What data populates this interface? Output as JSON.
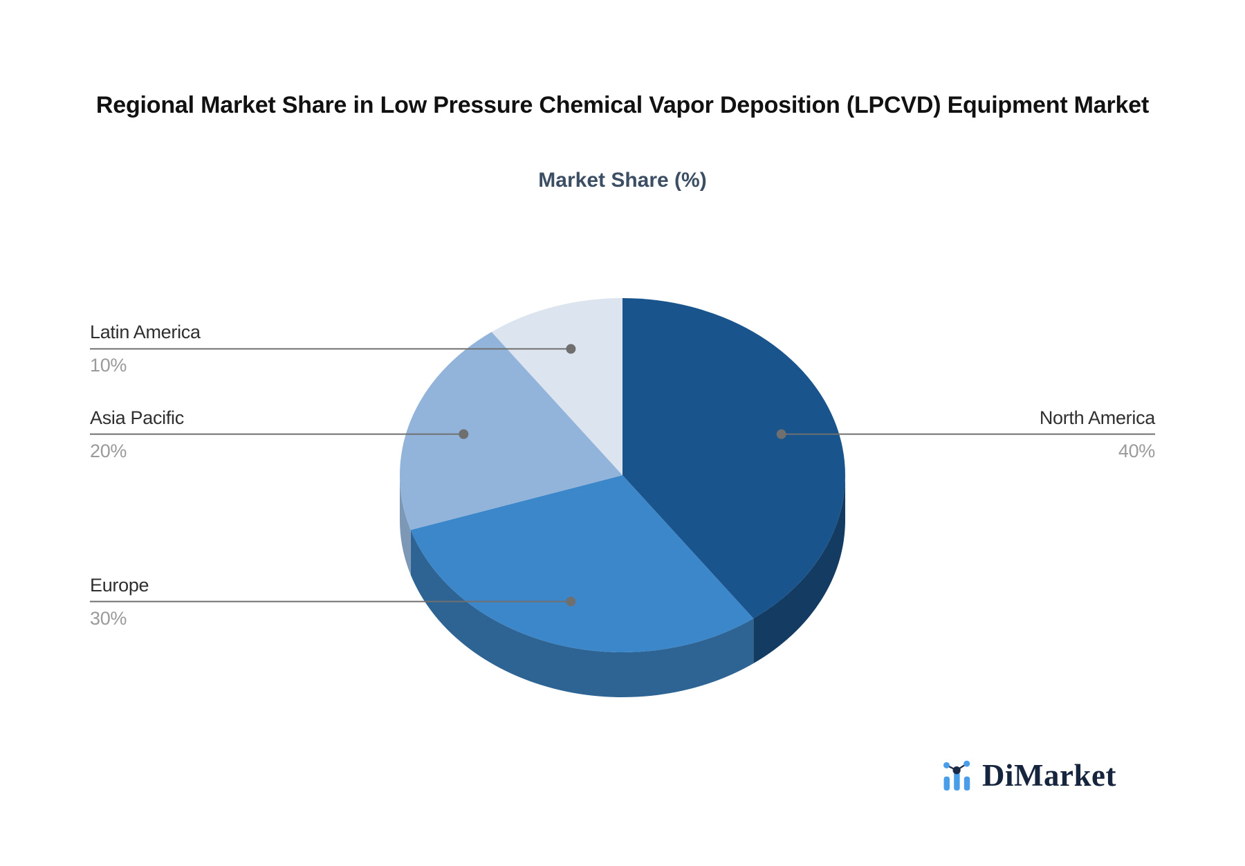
{
  "header": {
    "title": "Regional Market Share in Low Pressure Chemical Vapor Deposition (LPCVD) Equipment Market",
    "subtitle": "Market Share (%)"
  },
  "chart_data": {
    "type": "pie",
    "title": "Regional Market Share in Low Pressure Chemical Vapor Deposition (LPCVD) Equipment Market",
    "subtitle": "Market Share (%)",
    "unit": "%",
    "effect": "3d",
    "start_angle_deg": 90,
    "direction": "clockwise",
    "legend_position": "none",
    "slices": [
      {
        "label": "North America",
        "value": 40,
        "display": "40%",
        "color": "#19548C",
        "side_color": "#143C62"
      },
      {
        "label": "Europe",
        "value": 30,
        "display": "30%",
        "color": "#3C86CA",
        "side_color": "#2E6494"
      },
      {
        "label": "Asia Pacific",
        "value": 20,
        "display": "20%",
        "color": "#93B4DA",
        "side_color": "#7D97B6"
      },
      {
        "label": "Latin America",
        "value": 10,
        "display": "10%",
        "color": "#DCE4EF"
      }
    ],
    "label_name_color": "#2F2F2F",
    "label_value_color": "#9A9A9A",
    "leader_line_color": "#6F6F6F"
  },
  "logo": {
    "text": "DiMarket",
    "icon": "bar-line-chart-icon",
    "icon_color": "#4A9DE8",
    "icon_accent_color": "#1B2A44",
    "text_color": "#16243E"
  }
}
